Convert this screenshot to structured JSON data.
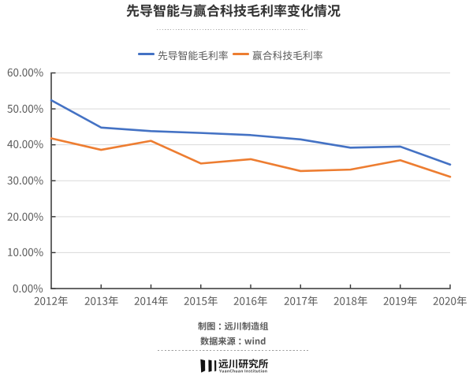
{
  "title": "先导智能与赢合科技毛利率变化情况",
  "legend": {
    "items": [
      {
        "label": "先导智能毛利率",
        "color": "#4472c4"
      },
      {
        "label": "赢合科技毛利率",
        "color": "#ed7d31"
      }
    ]
  },
  "chart_data": {
    "type": "line",
    "title": "先导智能与赢合科技毛利率变化情况",
    "categories": [
      "2012年",
      "2013年",
      "2014年",
      "2015年",
      "2016年",
      "2017年",
      "2018年",
      "2019年",
      "2020年"
    ],
    "series": [
      {
        "name": "先导智能毛利率",
        "color": "#4472c4",
        "values": [
          52.4,
          44.8,
          43.8,
          43.3,
          42.7,
          41.5,
          39.2,
          39.5,
          34.5
        ]
      },
      {
        "name": "赢合科技毛利率",
        "color": "#ed7d31",
        "values": [
          41.8,
          38.6,
          41.1,
          34.8,
          36.0,
          32.7,
          33.1,
          35.7,
          31.1
        ]
      }
    ],
    "xlabel": "",
    "ylabel": "",
    "ylim": [
      0,
      60
    ],
    "ytick_step": 10,
    "ytick_labels": [
      "0.00%",
      "10.00%",
      "20.00%",
      "30.00%",
      "40.00%",
      "50.00%",
      "60.00%"
    ],
    "grid": true,
    "legend_position": "top"
  },
  "footer": {
    "credit": "制图：远川制造组",
    "source": "数据来源：wind"
  },
  "logo": {
    "name": "远川研究所",
    "subtitle": "YuanChuan Institution",
    "icon": "three-bars-logo"
  },
  "colors": {
    "series1": "#4472c4",
    "series2": "#ed7d31",
    "gridline": "#d9d9d9",
    "axis": "#333333",
    "tick_text": "#595959",
    "title_text": "#333333",
    "footer_text": "#595959",
    "logo_text": "#1b1b1b"
  }
}
